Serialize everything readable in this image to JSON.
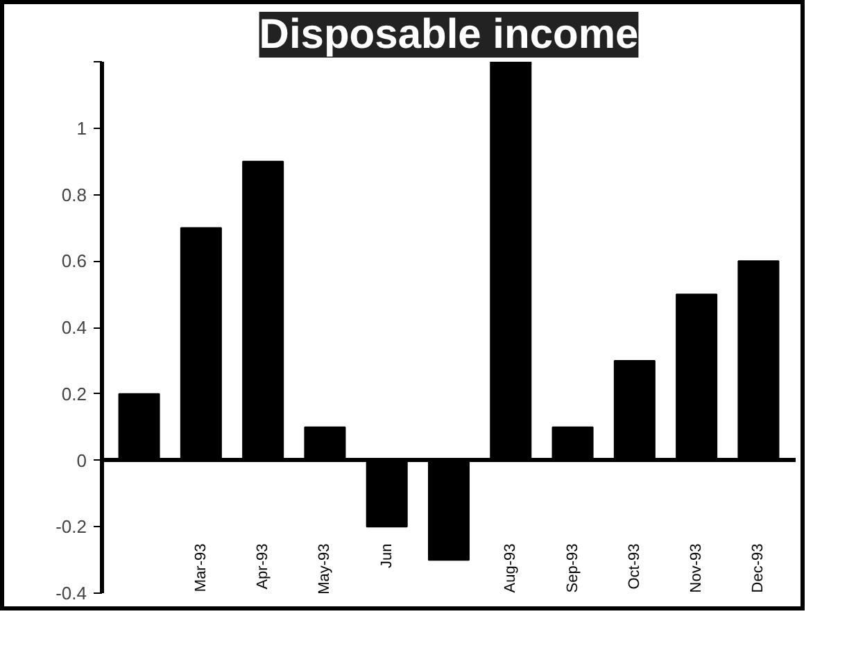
{
  "chart_data": {
    "type": "bar",
    "title": "Disposable income",
    "categories": [
      null,
      "Mar-93",
      "Apr-93",
      "May-93",
      "Jun",
      null,
      "Aug-93",
      "Sep-93",
      "Oct-93",
      "Nov-93",
      "Dec-93"
    ],
    "values": [
      0.2,
      0.7,
      0.9,
      0.1,
      -0.2,
      -0.3,
      1.2,
      0.1,
      0.3,
      0.5,
      0.6
    ],
    "color": "#000000",
    "ylim": [
      -0.4,
      1.2
    ],
    "yticks": [
      {
        "value": -0.4,
        "label": "-0.4"
      },
      {
        "value": -0.2,
        "label": "-0.2"
      },
      0,
      {
        "value": 0.2,
        "label": "0.2"
      },
      {
        "value": 0.4,
        "label": "0.4"
      },
      {
        "value": 0.6,
        "label": "0.6"
      },
      {
        "value": 0.8,
        "label": "0.8"
      },
      1,
      {
        "value": 1.2,
        "label": null
      }
    ]
  }
}
